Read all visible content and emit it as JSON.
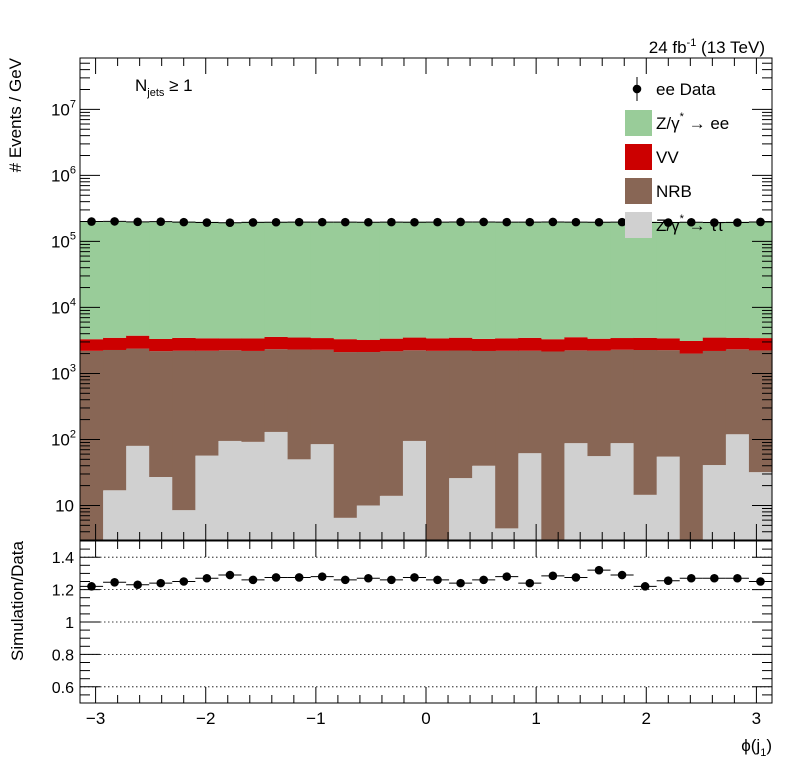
{
  "chart_data": {
    "type": "bar",
    "header": {
      "lumi_base": "24 fb",
      "lumi_exp": "-1",
      "energy": " (13 TeV)"
    },
    "selection": {
      "base": "N",
      "sub": "jets",
      "rest": " ≥ 1"
    },
    "xlabel": {
      "base": "ϕ(j",
      "sub": "1",
      "close": ")"
    },
    "x_range": [
      -3.1416,
      3.1416
    ],
    "n_bins": 30,
    "x_ticks": [
      -3,
      -2,
      -1,
      0,
      1,
      2,
      3
    ],
    "x_tick_labels": [
      "−3",
      "−2",
      "−1",
      "0",
      "1",
      "2",
      "3"
    ],
    "top_panel": {
      "ylabel": "# Events / GeV",
      "ylog": true,
      "ylim": [
        3,
        60000000
      ],
      "y_tick_labels": [
        {
          "value": 10,
          "base": "10",
          "exp": ""
        },
        {
          "value": 100,
          "base": "10",
          "exp": "2"
        },
        {
          "value": 1000,
          "base": "10",
          "exp": "3"
        },
        {
          "value": 10000,
          "base": "10",
          "exp": "4"
        },
        {
          "value": 100000,
          "base": "10",
          "exp": "5"
        },
        {
          "value": 1000000,
          "base": "10",
          "exp": "6"
        },
        {
          "value": 10000000,
          "base": "10",
          "exp": "7"
        }
      ],
      "stack_order": [
        "ztautau",
        "nrb",
        "vv",
        "zee"
      ],
      "series": [
        {
          "key": "zee",
          "name": "Z/γ* → ee",
          "legend": {
            "base": "Z/γ",
            "sup": "*",
            "rest": " → ee"
          },
          "color": "#99cc99",
          "values": [
            193000,
            195000,
            193000,
            193000,
            197000,
            195000,
            191000,
            195000,
            194000,
            196000,
            195000,
            195000,
            194000,
            195000,
            196000,
            194000,
            196000,
            196000,
            194000,
            195000,
            193000,
            194000,
            195000,
            194000,
            196000,
            194000,
            193000,
            194000,
            196000,
            197000
          ]
        },
        {
          "key": "vv",
          "name": "VV",
          "legend": {
            "base": "VV",
            "sup": "",
            "rest": ""
          },
          "color": "#cc0000",
          "values": [
            1100,
            1200,
            1350,
            1150,
            1250,
            1200,
            1150,
            1200,
            1250,
            1200,
            1150,
            1200,
            1100,
            1200,
            1250,
            1200,
            1250,
            1150,
            1200,
            1250,
            1150,
            1300,
            1150,
            1150,
            1200,
            1150,
            1100,
            1300,
            1150,
            1200
          ]
        },
        {
          "key": "nrb",
          "name": "NRB",
          "legend": {
            "base": "NRB",
            "sup": "",
            "rest": ""
          },
          "color": "#886655",
          "values": [
            2200,
            2250,
            2300,
            2150,
            2200,
            2150,
            2150,
            2100,
            2200,
            2250,
            2200,
            2100,
            2100,
            2150,
            2150,
            2200,
            2200,
            2150,
            2200,
            2150,
            2150,
            2150,
            2150,
            2200,
            2250,
            2200,
            2000,
            2150,
            2200,
            2200
          ]
        },
        {
          "key": "ztautau",
          "name": "Z/γ* → ττ",
          "legend": {
            "base": "Z/γ",
            "sup": "*",
            "rest": " → ττ"
          },
          "color": "#d0d0d0",
          "values": [
            0.5,
            17,
            80,
            27,
            8.5,
            57,
            95,
            92,
            130,
            50,
            85,
            6.5,
            10,
            14,
            95,
            0.5,
            26,
            40,
            4.5,
            62,
            0.5,
            88,
            56,
            88,
            14.5,
            55,
            0.5,
            41,
            120,
            32
          ]
        }
      ],
      "data": {
        "name": "ee Data",
        "legend": {
          "base": "ee Data",
          "sup": "",
          "rest": ""
        },
        "values": [
          200000,
          201000,
          198000,
          199000,
          196000,
          193000,
          192000,
          194000,
          195000,
          196000,
          196000,
          196000,
          195000,
          196000,
          195000,
          196000,
          197000,
          197000,
          196000,
          196000,
          197000,
          196000,
          195000,
          196000,
          193000,
          193000,
          195000,
          193000,
          193000,
          197000
        ]
      }
    },
    "ratio_panel": {
      "ylabel": "Simulation/Data",
      "ylim": [
        0.5,
        1.5
      ],
      "y_ticks": [
        0.6,
        0.8,
        1,
        1.2,
        1.4
      ],
      "y_tick_labels": [
        "0.6",
        "0.8",
        "1",
        "1.2",
        "1.4"
      ],
      "gridlines": [
        0.6,
        0.8,
        1,
        1.2,
        1.4
      ],
      "values": [
        1.22,
        1.245,
        1.23,
        1.24,
        1.25,
        1.27,
        1.29,
        1.26,
        1.275,
        1.275,
        1.28,
        1.26,
        1.27,
        1.26,
        1.275,
        1.26,
        1.24,
        1.26,
        1.28,
        1.24,
        1.285,
        1.275,
        1.32,
        1.29,
        1.22,
        1.255,
        1.27,
        1.27,
        1.27,
        1.25
      ]
    },
    "legend_placement": "top-right"
  }
}
